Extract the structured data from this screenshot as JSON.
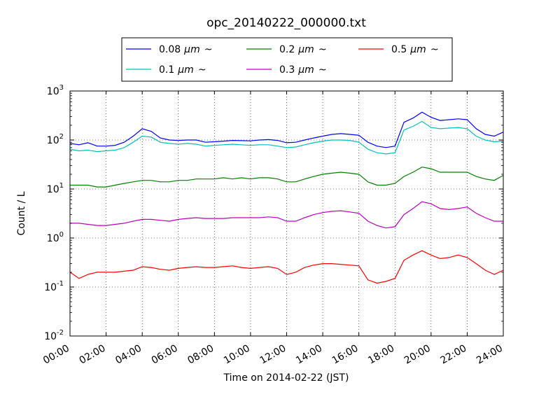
{
  "chart_data": {
    "type": "line",
    "title": "opc_20140222_000000.txt",
    "xlabel": "Time on 2014-02-22 (JST)",
    "ylabel": "Count / L",
    "yscale": "log",
    "ylim": [
      0.01,
      1000
    ],
    "xlim": [
      "00:00",
      "24:00"
    ],
    "grid": true,
    "legend_placement": "top-center",
    "x_ticks": [
      "00:00",
      "02:00",
      "04:00",
      "06:00",
      "08:00",
      "10:00",
      "12:00",
      "14:00",
      "16:00",
      "18:00",
      "20:00",
      "22:00",
      "24:00"
    ],
    "y_ticks": [
      {
        "base": "10",
        "exp": "-2",
        "value": 0.01
      },
      {
        "base": "10",
        "exp": "-1",
        "value": 0.1
      },
      {
        "base": "10",
        "exp": "0",
        "value": 1
      },
      {
        "base": "10",
        "exp": "1",
        "value": 10
      },
      {
        "base": "10",
        "exp": "2",
        "value": 100
      },
      {
        "base": "10",
        "exp": "3",
        "value": 1000
      }
    ],
    "x": [
      "00:00",
      "00:30",
      "01:00",
      "01:30",
      "02:00",
      "02:30",
      "03:00",
      "03:30",
      "04:00",
      "04:30",
      "05:00",
      "05:30",
      "06:00",
      "06:30",
      "07:00",
      "07:30",
      "08:00",
      "08:30",
      "09:00",
      "09:30",
      "10:00",
      "10:30",
      "11:00",
      "11:30",
      "12:00",
      "12:30",
      "13:00",
      "13:30",
      "14:00",
      "14:30",
      "15:00",
      "15:30",
      "16:00",
      "16:30",
      "17:00",
      "17:30",
      "18:00",
      "18:30",
      "19:00",
      "19:30",
      "20:00",
      "20:30",
      "21:00",
      "21:30",
      "22:00",
      "22:30",
      "23:00",
      "23:30",
      "24:00"
    ],
    "series": [
      {
        "name": "0.08",
        "unit": "μm",
        "suffix": "~",
        "color": "#0000ff",
        "values": [
          85,
          80,
          88,
          75,
          75,
          78,
          90,
          120,
          170,
          150,
          110,
          100,
          98,
          100,
          100,
          90,
          92,
          95,
          98,
          97,
          96,
          100,
          102,
          98,
          88,
          90,
          100,
          110,
          120,
          130,
          135,
          130,
          125,
          90,
          75,
          70,
          75,
          230,
          280,
          370,
          290,
          250,
          260,
          270,
          260,
          170,
          130,
          120,
          145
        ]
      },
      {
        "name": "0.1",
        "unit": "μm",
        "suffix": "~",
        "color": "#00bfbf",
        "values": [
          65,
          60,
          62,
          58,
          60,
          62,
          70,
          90,
          120,
          115,
          90,
          85,
          82,
          85,
          82,
          75,
          78,
          80,
          82,
          80,
          78,
          80,
          80,
          75,
          70,
          72,
          80,
          88,
          95,
          100,
          100,
          98,
          90,
          65,
          55,
          52,
          55,
          160,
          190,
          240,
          180,
          170,
          175,
          180,
          170,
          120,
          100,
          92,
          95
        ]
      },
      {
        "name": "0.2",
        "unit": "μm",
        "suffix": "~",
        "color": "#008000",
        "values": [
          12,
          12,
          12,
          11,
          11,
          12,
          13,
          14,
          15,
          15,
          14,
          14,
          15,
          15,
          16,
          16,
          16,
          17,
          16,
          17,
          16,
          17,
          17,
          16,
          14,
          14,
          16,
          18,
          20,
          21,
          22,
          21,
          20,
          14,
          12,
          12,
          13,
          18,
          22,
          28,
          26,
          22,
          22,
          22,
          22,
          18,
          16,
          15,
          19
        ]
      },
      {
        "name": "0.3",
        "unit": "μm",
        "suffix": "~",
        "color": "#bf00bf",
        "values": [
          2.0,
          2.0,
          1.9,
          1.8,
          1.8,
          1.9,
          2.0,
          2.2,
          2.4,
          2.4,
          2.3,
          2.2,
          2.4,
          2.5,
          2.6,
          2.5,
          2.5,
          2.5,
          2.6,
          2.6,
          2.6,
          2.6,
          2.7,
          2.6,
          2.2,
          2.2,
          2.6,
          3.0,
          3.3,
          3.5,
          3.6,
          3.4,
          3.2,
          2.2,
          1.8,
          1.6,
          1.7,
          3.0,
          4.0,
          5.5,
          5.0,
          4.0,
          3.8,
          4.0,
          4.3,
          3.2,
          2.6,
          2.2,
          2.2
        ]
      },
      {
        "name": "0.5",
        "unit": "μm",
        "suffix": "~",
        "color": "#ff0000",
        "values": [
          0.2,
          0.15,
          0.18,
          0.2,
          0.2,
          0.2,
          0.21,
          0.22,
          0.26,
          0.25,
          0.23,
          0.22,
          0.24,
          0.25,
          0.26,
          0.25,
          0.25,
          0.26,
          0.27,
          0.25,
          0.24,
          0.25,
          0.26,
          0.24,
          0.18,
          0.2,
          0.25,
          0.28,
          0.3,
          0.3,
          0.29,
          0.28,
          0.27,
          0.14,
          0.12,
          0.13,
          0.15,
          0.35,
          0.45,
          0.55,
          0.45,
          0.38,
          0.4,
          0.45,
          0.4,
          0.3,
          0.22,
          0.18,
          0.22
        ]
      }
    ]
  }
}
